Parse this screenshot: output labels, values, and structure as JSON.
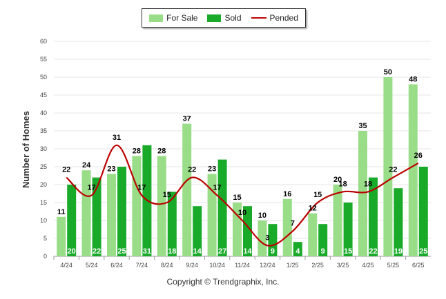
{
  "chart_data": {
    "type": "bar",
    "categories": [
      "4/24",
      "5/24",
      "6/24",
      "7/24",
      "8/24",
      "9/24",
      "10/24",
      "11/24",
      "12/24",
      "1/25",
      "2/25",
      "3/25",
      "4/25",
      "5/25",
      "6/25"
    ],
    "series": [
      {
        "name": "For Sale",
        "type": "bar",
        "color": "#99dd88",
        "values": [
          11,
          24,
          23,
          28,
          28,
          37,
          23,
          15,
          10,
          16,
          12,
          20,
          35,
          50,
          48
        ]
      },
      {
        "name": "Sold",
        "type": "bar",
        "color": "#1aaa2a",
        "values": [
          20,
          22,
          25,
          31,
          18,
          14,
          27,
          14,
          9,
          4,
          9,
          15,
          22,
          19,
          25
        ]
      },
      {
        "name": "Pended",
        "type": "line",
        "color": "#bb0000",
        "values": [
          22,
          17,
          31,
          17,
          15,
          22,
          17,
          10,
          3,
          7,
          15,
          18,
          18,
          22,
          26
        ]
      }
    ],
    "ylabel": "Number of Homes",
    "xlabel": "",
    "ylim": [
      0,
      60
    ],
    "yticks": [
      0,
      5,
      10,
      15,
      20,
      25,
      30,
      35,
      40,
      45,
      50,
      55,
      60
    ],
    "grid": true,
    "legend_position": "top-center"
  },
  "legend": {
    "items": [
      {
        "label": "For Sale",
        "color": "#99dd88",
        "kind": "box"
      },
      {
        "label": "Sold",
        "color": "#1aaa2a",
        "kind": "box"
      },
      {
        "label": "Pended",
        "color": "#bb0000",
        "kind": "line"
      }
    ]
  },
  "footer": {
    "copyright": "Copyright © Trendgraphix, Inc."
  }
}
